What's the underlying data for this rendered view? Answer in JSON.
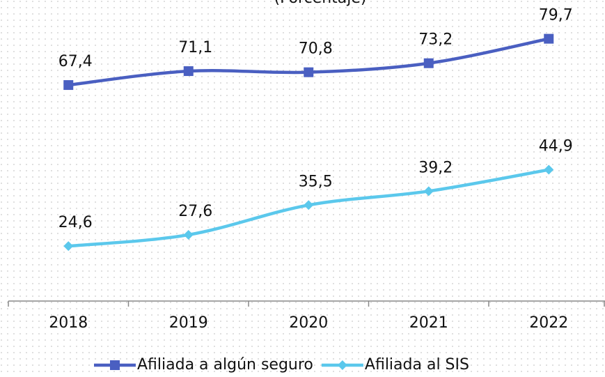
{
  "chart_data": {
    "type": "line",
    "subtitle": "(Porcentaje)",
    "categories": [
      "2018",
      "2019",
      "2020",
      "2021",
      "2022"
    ],
    "series": [
      {
        "name": "Afiliada a algún seguro",
        "color": "#4a5fc1",
        "marker": "square",
        "values": [
          67.4,
          71.1,
          70.8,
          73.2,
          79.7
        ],
        "value_labels": [
          "67,4",
          "71,1",
          "70,8",
          "73,2",
          "79,7"
        ]
      },
      {
        "name": "Afiliada al SIS",
        "color": "#5bc8ec",
        "marker": "diamond",
        "values": [
          24.6,
          27.6,
          35.5,
          39.2,
          44.9
        ],
        "value_labels": [
          "24,6",
          "27,6",
          "35,5",
          "39,2",
          "44,9"
        ]
      }
    ],
    "ylim": [
      10,
      90
    ],
    "legend": "bottom"
  }
}
